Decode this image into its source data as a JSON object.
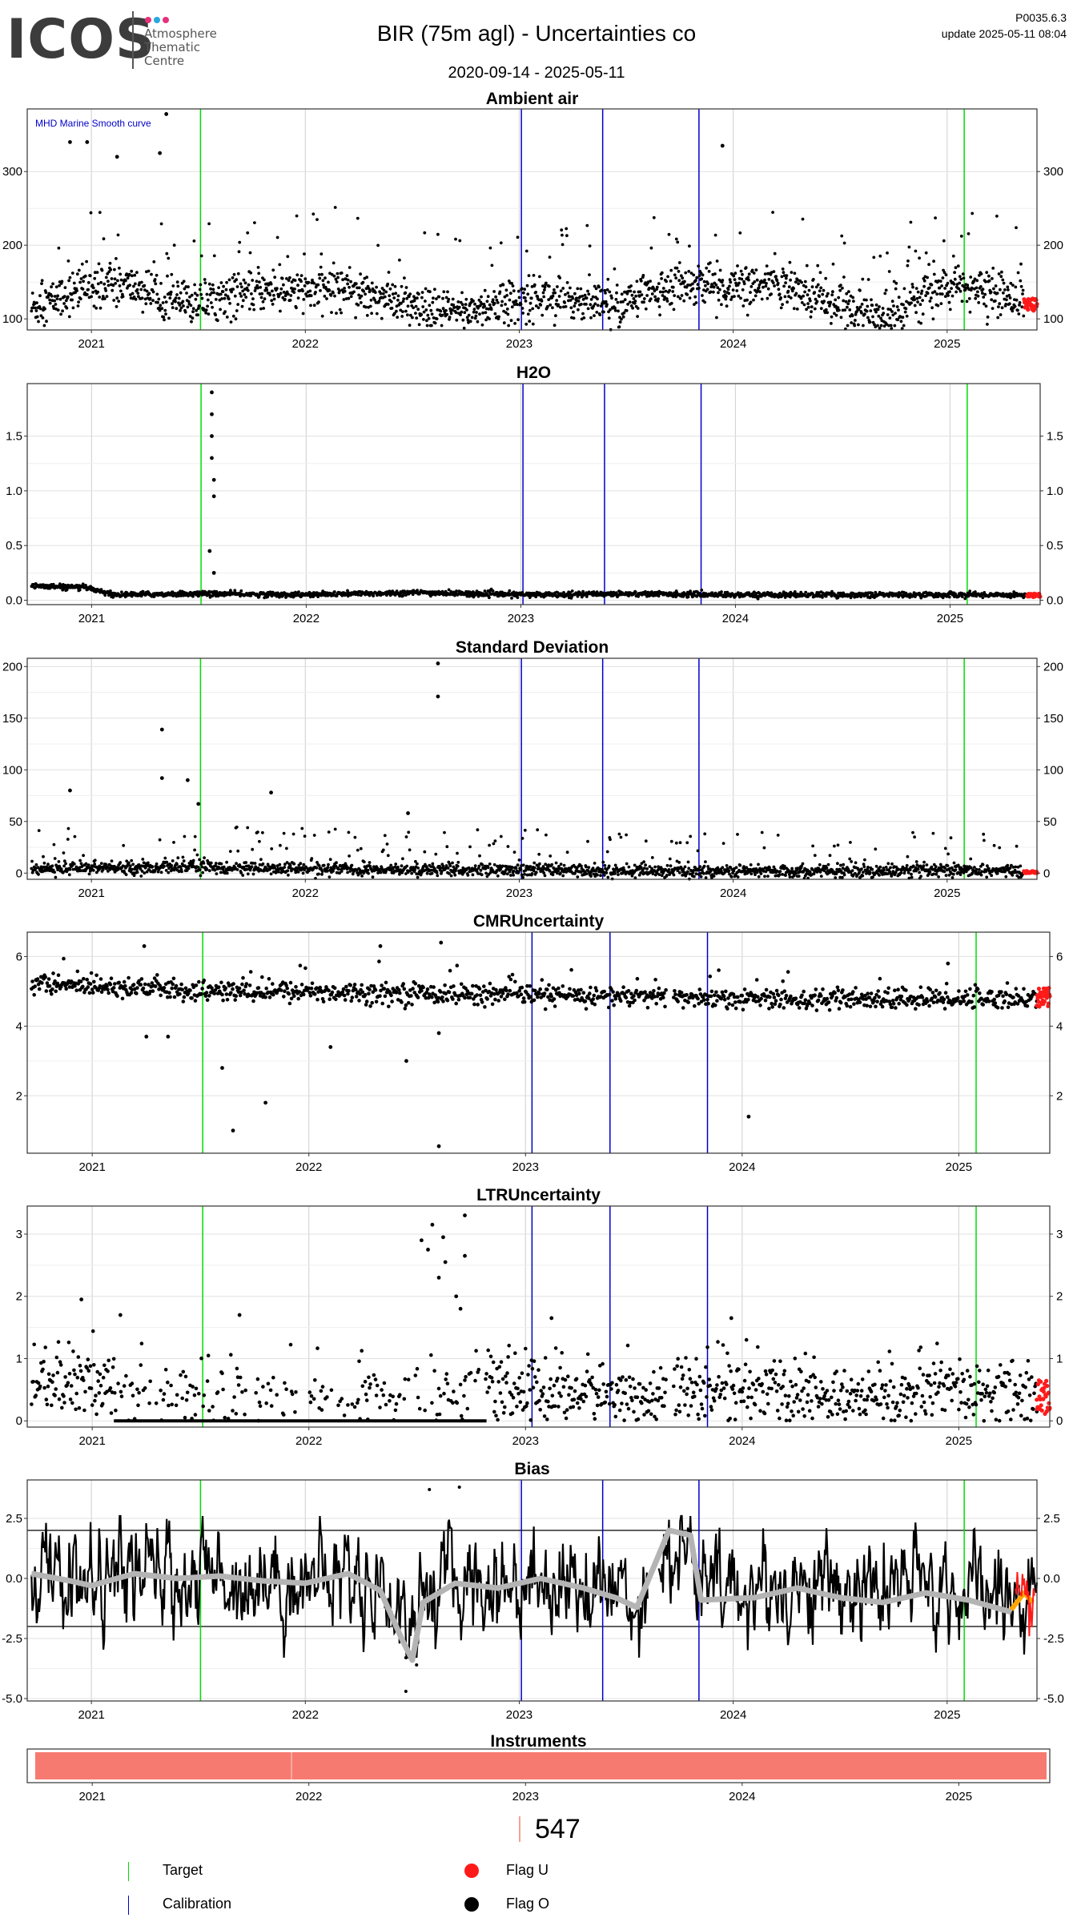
{
  "header": {
    "logo_text": "ICOS",
    "logo_subtitle_lines": [
      "Atmosphere",
      "Thematic",
      "Centre"
    ],
    "logo_dot_colors": [
      "#e6317a",
      "#2aa7df",
      "#e6317a"
    ],
    "title": "BIR  (75m agl) - Uncertainties co",
    "date_range": "2020-09-14 - 2025-05-11",
    "version": "P0035.6.3",
    "update": "update  2025-05-11 08:04"
  },
  "colors": {
    "data": "#000000",
    "flag_u": "#ff1a1a",
    "flag_o": "#000000",
    "target": "#00dd00",
    "calibration": "#0000cc",
    "smooth": "#b4b4b4",
    "smooth_recent": "#ffa500",
    "instrument": "#f77a70",
    "annotation": "#0000cc"
  },
  "chart_data": [
    {
      "id": "ambient",
      "type": "scatter",
      "title": "Ambient air",
      "annotation": "MHD Marine Smooth curve",
      "ylim": [
        85,
        385
      ],
      "yticks": [
        100,
        200,
        300
      ],
      "right_axis": true,
      "x_ticks": [
        "2021",
        "2022",
        "2023",
        "2024",
        "2025"
      ],
      "xlim": [
        2020.7,
        2025.42
      ],
      "target_lines": [
        2021.51,
        2025.08
      ],
      "calibration_lines": [
        2023.01,
        2023.39,
        2023.84
      ],
      "series": [
        {
          "style": "dense",
          "knots": [
            [
              2020.72,
              115
            ],
            [
              2020.9,
              135
            ],
            [
              2021.1,
              150
            ],
            [
              2021.3,
              135
            ],
            [
              2021.45,
              120
            ],
            [
              2021.6,
              130
            ],
            [
              2021.8,
              140
            ],
            [
              2022.0,
              138
            ],
            [
              2022.2,
              145
            ],
            [
              2022.4,
              125
            ],
            [
              2022.55,
              108
            ],
            [
              2022.75,
              112
            ],
            [
              2022.95,
              122
            ],
            [
              2023.1,
              132
            ],
            [
              2023.3,
              125
            ],
            [
              2023.45,
              115
            ],
            [
              2023.6,
              135
            ],
            [
              2023.8,
              150
            ],
            [
              2024.0,
              140
            ],
            [
              2024.2,
              145
            ],
            [
              2024.4,
              130
            ],
            [
              2024.6,
              110
            ],
            [
              2024.7,
              100
            ],
            [
              2024.9,
              135
            ],
            [
              2025.05,
              145
            ],
            [
              2025.3,
              130
            ],
            [
              2025.36,
              125
            ]
          ],
          "spread": 14,
          "spike_prob": 0.06,
          "spike_max": 110,
          "outliers": [
            [
              2021.35,
              378
            ],
            [
              2020.9,
              340
            ],
            [
              2020.98,
              340
            ],
            [
              2021.32,
              325
            ],
            [
              2021.12,
              320
            ],
            [
              2023.95,
              335
            ]
          ]
        }
      ],
      "flagged_tail": {
        "x": [
          2025.36,
          2025.42
        ],
        "y": [
          110,
          128
        ]
      }
    },
    {
      "id": "h2o",
      "type": "scatter",
      "title": "H2O",
      "ylim": [
        -0.04,
        1.98
      ],
      "yticks": [
        0.0,
        0.5,
        1.0,
        1.5
      ],
      "ytick_labels": [
        "0.0",
        "0.5",
        "1.0",
        "1.5"
      ],
      "right_axis": true,
      "x_ticks": [
        "2021",
        "2022",
        "2023",
        "2024",
        "2025"
      ],
      "xlim": [
        2020.7,
        2025.42
      ],
      "target_lines": [
        2021.51,
        2025.08
      ],
      "calibration_lines": [
        2023.01,
        2023.39,
        2023.84
      ],
      "series": [
        {
          "style": "dense",
          "knots": [
            [
              2020.72,
              0.13
            ],
            [
              2020.9,
              0.12
            ],
            [
              2021.0,
              0.11
            ],
            [
              2021.1,
              0.05
            ],
            [
              2021.5,
              0.06
            ],
            [
              2022.0,
              0.05
            ],
            [
              2022.5,
              0.07
            ],
            [
              2023.0,
              0.05
            ],
            [
              2023.5,
              0.06
            ],
            [
              2024.0,
              0.05
            ],
            [
              2025.0,
              0.05
            ],
            [
              2025.36,
              0.05
            ]
          ],
          "spread": 0.012,
          "spike_prob": 0.0,
          "spike_max": 0,
          "outliers": [
            [
              2021.56,
              1.9
            ],
            [
              2021.56,
              1.7
            ],
            [
              2021.56,
              1.5
            ],
            [
              2021.56,
              1.3
            ],
            [
              2021.57,
              1.1
            ],
            [
              2021.57,
              0.95
            ],
            [
              2021.55,
              0.45
            ],
            [
              2021.57,
              0.25
            ]
          ]
        }
      ],
      "flagged_tail": {
        "x": [
          2025.36,
          2025.42
        ],
        "y": [
          0.03,
          0.06
        ]
      }
    },
    {
      "id": "std",
      "type": "scatter",
      "title": "Standard Deviation",
      "ylim": [
        -6,
        208
      ],
      "yticks": [
        0,
        50,
        100,
        150,
        200
      ],
      "right_axis": true,
      "x_ticks": [
        "2021",
        "2022",
        "2023",
        "2024",
        "2025"
      ],
      "xlim": [
        2020.7,
        2025.42
      ],
      "target_lines": [
        2021.51,
        2025.08
      ],
      "calibration_lines": [
        2023.01,
        2023.39,
        2023.84
      ],
      "series": [
        {
          "style": "dense",
          "knots": [
            [
              2020.72,
              4
            ],
            [
              2021.5,
              6
            ],
            [
              2022.0,
              4
            ],
            [
              2022.8,
              3
            ],
            [
              2023.5,
              2
            ],
            [
              2024.5,
              2
            ],
            [
              2025.36,
              2
            ]
          ],
          "spread": 3,
          "spike_prob": 0.08,
          "spike_max": 40,
          "outliers": [
            [
              2022.62,
              203
            ],
            [
              2022.62,
              171
            ],
            [
              2021.33,
              139
            ],
            [
              2021.33,
              92
            ],
            [
              2021.45,
              90
            ],
            [
              2020.9,
              80
            ],
            [
              2021.84,
              78
            ],
            [
              2021.5,
              67
            ],
            [
              2022.48,
              58
            ]
          ]
        }
      ],
      "flagged_tail": {
        "x": [
          2025.36,
          2025.42
        ],
        "y": [
          0,
          2
        ]
      }
    },
    {
      "id": "cmr",
      "type": "scatter",
      "title": "CMRUncertainty",
      "ylim": [
        0.35,
        6.7
      ],
      "yticks": [
        2,
        4,
        6
      ],
      "right_axis": true,
      "x_ticks": [
        "2021",
        "2022",
        "2023",
        "2024",
        "2025"
      ],
      "xlim": [
        2020.7,
        2025.42
      ],
      "target_lines": [
        2021.51,
        2025.08
      ],
      "calibration_lines": [
        2023.03,
        2023.39,
        2023.84
      ],
      "gaps": [
        [
          2023.65,
          2023.68
        ]
      ],
      "series": [
        {
          "style": "sparse",
          "knots": [
            [
              2020.72,
              5.2
            ],
            [
              2021.0,
              5.2
            ],
            [
              2021.5,
              5.0
            ],
            [
              2022.0,
              5.0
            ],
            [
              2022.5,
              4.95
            ],
            [
              2023.0,
              4.9
            ],
            [
              2023.5,
              4.85
            ],
            [
              2024.0,
              4.8
            ],
            [
              2024.5,
              4.75
            ],
            [
              2025.0,
              4.8
            ],
            [
              2025.36,
              4.8
            ]
          ],
          "spread": 0.15,
          "spike_prob": 0.02,
          "spike_max": 0.9,
          "outliers": [
            [
              2021.24,
              6.3
            ],
            [
              2022.33,
              6.3
            ],
            [
              2022.61,
              6.4
            ],
            [
              2021.6,
              2.8
            ],
            [
              2021.8,
              1.8
            ],
            [
              2021.65,
              1.0
            ],
            [
              2022.1,
              3.4
            ],
            [
              2022.45,
              3.0
            ],
            [
              2022.6,
              0.55
            ],
            [
              2024.03,
              1.4
            ],
            [
              2021.25,
              3.7
            ],
            [
              2021.35,
              3.7
            ],
            [
              2022.6,
              3.8
            ],
            [
              2024.95,
              5.8
            ]
          ]
        }
      ],
      "flagged_tail": {
        "x": [
          2025.36,
          2025.42
        ],
        "y": [
          4.5,
          5.1
        ]
      }
    },
    {
      "id": "ltr",
      "type": "scatter",
      "title": "LTRUncertainty",
      "ylim": [
        -0.1,
        3.45
      ],
      "yticks": [
        0,
        1,
        2,
        3
      ],
      "right_axis": true,
      "x_ticks": [
        "2021",
        "2022",
        "2023",
        "2024",
        "2025"
      ],
      "xlim": [
        2020.7,
        2025.42
      ],
      "target_lines": [
        2021.51,
        2025.08
      ],
      "calibration_lines": [
        2023.03,
        2023.39,
        2023.84
      ],
      "gaps": [
        [
          2023.65,
          2023.68
        ]
      ],
      "series": [
        {
          "style": "ltr",
          "knots": [
            [
              2020.72,
              0.6
            ],
            [
              2021.0,
              0.55
            ],
            [
              2021.2,
              0.4
            ],
            [
              2022.0,
              0.4
            ],
            [
              2022.8,
              0.5
            ],
            [
              2023.0,
              0.5
            ],
            [
              2023.5,
              0.4
            ],
            [
              2024.0,
              0.5
            ],
            [
              2024.5,
              0.35
            ],
            [
              2025.0,
              0.45
            ],
            [
              2025.36,
              0.4
            ]
          ],
          "spread": 0.28,
          "spike_prob": 0.03,
          "spike_max": 0.9,
          "baseline": {
            "from": 2021.1,
            "to": 2022.82,
            "y": 0.0
          },
          "outliers": [
            [
              2022.57,
              3.15
            ],
            [
              2022.52,
              2.9
            ],
            [
              2022.62,
              2.95
            ],
            [
              2022.72,
              3.3
            ],
            [
              2022.55,
              2.75
            ],
            [
              2022.63,
              2.55
            ],
            [
              2022.6,
              2.3
            ],
            [
              2022.68,
              2.0
            ],
            [
              2022.72,
              2.65
            ],
            [
              2022.7,
              1.8
            ],
            [
              2020.95,
              1.95
            ],
            [
              2021.13,
              1.7
            ],
            [
              2021.68,
              1.7
            ],
            [
              2023.12,
              1.65
            ],
            [
              2023.95,
              1.65
            ]
          ]
        }
      ],
      "flagged_tail": {
        "x": [
          2025.36,
          2025.42
        ],
        "y": [
          0.1,
          0.65
        ]
      }
    },
    {
      "id": "bias",
      "type": "line",
      "title": "Bias",
      "ylim": [
        -5.1,
        4.1
      ],
      "yticks": [
        -5.0,
        -2.5,
        0.0,
        2.5
      ],
      "ytick_labels": [
        "-5.0",
        "-2.5",
        "0.0",
        "2.5"
      ],
      "right_axis": true,
      "x_ticks": [
        "2021",
        "2022",
        "2023",
        "2024",
        "2025"
      ],
      "xlim": [
        2020.7,
        2025.42
      ],
      "target_lines": [
        2021.51,
        2025.08
      ],
      "calibration_lines": [
        2023.01,
        2023.39,
        2023.84
      ],
      "hlines": [
        2,
        -2
      ],
      "gaps": [
        [
          2023.6,
          2023.65
        ]
      ],
      "series": [
        {
          "style": "bias",
          "spread": 0.9,
          "outliers": [
            [
              2022.47,
              -3.3
            ],
            [
              2022.47,
              -4.7
            ],
            [
              2022.52,
              -3.6
            ],
            [
              2022.58,
              3.7
            ],
            [
              2022.72,
              3.8
            ],
            [
              2023.8,
              2.0
            ]
          ]
        }
      ],
      "smooth": [
        [
          2020.72,
          0.2
        ],
        [
          2020.9,
          -0.1
        ],
        [
          2021.0,
          -0.3
        ],
        [
          2021.2,
          0.2
        ],
        [
          2021.4,
          0.0
        ],
        [
          2021.6,
          0.1
        ],
        [
          2021.8,
          -0.1
        ],
        [
          2022.0,
          -0.2
        ],
        [
          2022.2,
          0.2
        ],
        [
          2022.35,
          -0.5
        ],
        [
          2022.45,
          -2.5
        ],
        [
          2022.5,
          -3.4
        ],
        [
          2022.55,
          -1.0
        ],
        [
          2022.7,
          -0.2
        ],
        [
          2022.9,
          -0.4
        ],
        [
          2023.1,
          0.0
        ],
        [
          2023.3,
          -0.4
        ],
        [
          2023.45,
          -0.8
        ],
        [
          2023.55,
          -1.2
        ],
        [
          2023.7,
          2.0
        ],
        [
          2023.8,
          1.8
        ],
        [
          2023.85,
          -0.9
        ],
        [
          2024.1,
          -0.8
        ],
        [
          2024.3,
          -0.4
        ],
        [
          2024.5,
          -0.8
        ],
        [
          2024.7,
          -1.0
        ],
        [
          2024.9,
          -0.6
        ],
        [
          2025.1,
          -0.9
        ],
        [
          2025.3,
          -1.4
        ]
      ],
      "smooth_recent": [
        [
          2025.3,
          -1.3
        ],
        [
          2025.36,
          -0.6
        ],
        [
          2025.4,
          -1.0
        ]
      ]
    }
  ],
  "instruments": {
    "title": "Instruments",
    "x_ticks": [
      "2021",
      "2022",
      "2023",
      "2024",
      "2025"
    ],
    "xlim": [
      2020.7,
      2025.42
    ],
    "bar": [
      2020.7,
      2025.42
    ],
    "divider": 2021.92
  },
  "instrument_count": "547",
  "legend": {
    "target": "Target",
    "calibration": "Calibration",
    "flag_u": "Flag U",
    "flag_o": "Flag O"
  }
}
